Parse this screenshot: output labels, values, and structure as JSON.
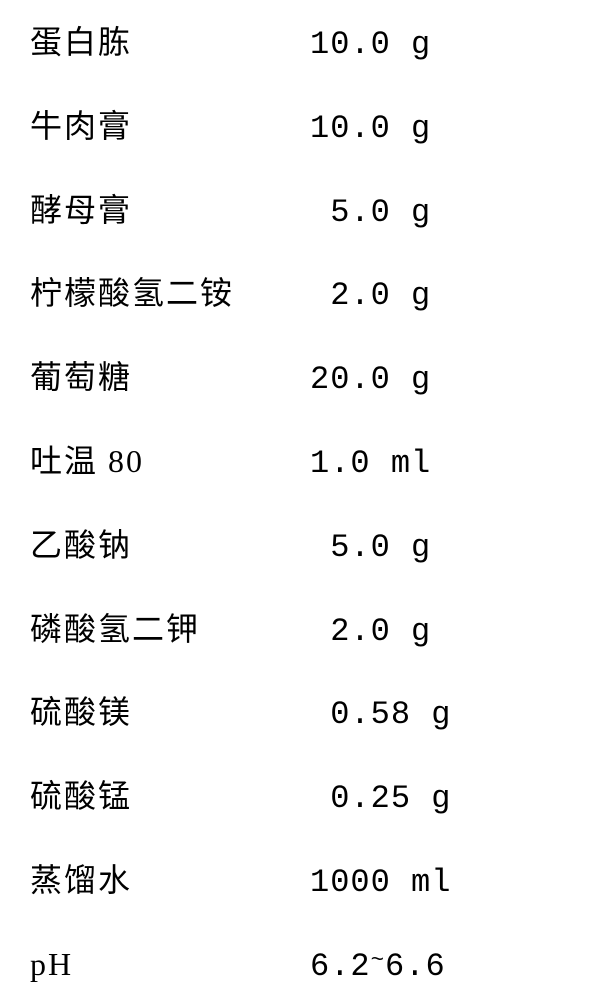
{
  "recipe": {
    "rows": [
      {
        "label": "蛋白胨",
        "value": "10.0 g"
      },
      {
        "label": "牛肉膏",
        "value": "10.0 g"
      },
      {
        "label": "酵母膏",
        "value": " 5.0 g"
      },
      {
        "label": "柠檬酸氢二铵",
        "value": " 2.0 g"
      },
      {
        "label": "葡萄糖",
        "value": "20.0 g"
      },
      {
        "label": "吐温 80",
        "value": "1.0 ml"
      },
      {
        "label": "乙酸钠",
        "value": " 5.0 g"
      },
      {
        "label": "磷酸氢二钾",
        "value": " 2.0 g"
      },
      {
        "label": "硫酸镁",
        "value": " 0.58 g"
      },
      {
        "label": "硫酸锰",
        "value": " 0.25 g"
      },
      {
        "label": "蒸馏水",
        "value": "1000 ml"
      },
      {
        "label": "pH",
        "value": "6.2~6.6"
      }
    ],
    "table_type": "table",
    "background_color": "#ffffff",
    "text_color": "#000000",
    "font_size": 32,
    "row_spacing": 36,
    "label_width": 280,
    "font_family_label": "SimSun",
    "font_family_value": "Courier New"
  }
}
